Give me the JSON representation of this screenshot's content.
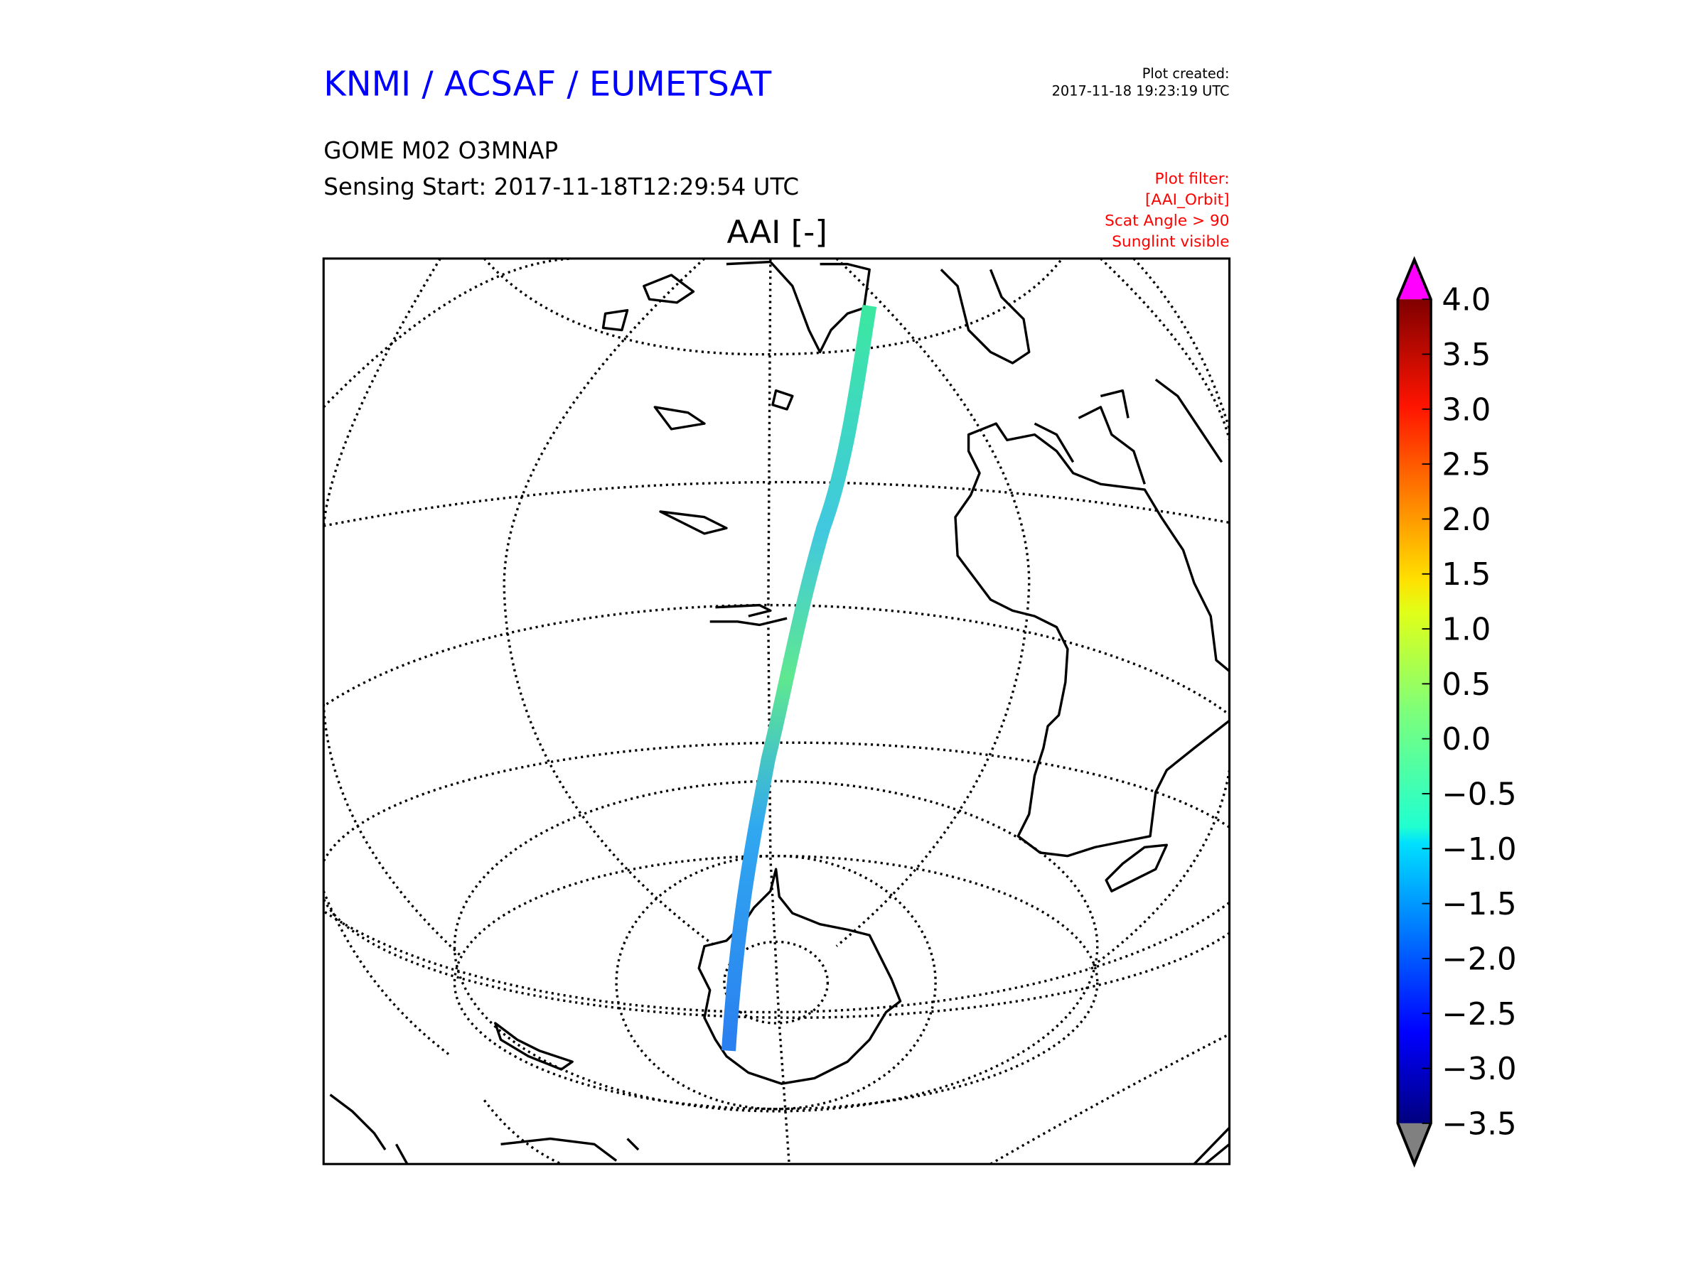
{
  "header": {
    "org_title": "KNMI / ACSAF / EUMETSAT",
    "product": "GOME M02 O3MNAP",
    "sensing_start": "Sensing Start: 2017-11-18T12:29:54 UTC",
    "plot_created_label": "Plot created:",
    "plot_created_value": "2017-11-18 19:23:19 UTC",
    "filter_lines": [
      "Plot filter:",
      "[AAI_Orbit]",
      "Scat Angle > 90",
      "Sunglint visible"
    ]
  },
  "map": {
    "title": "AAI [-]"
  },
  "colorbar": {
    "min": -3.5,
    "max": 4.0,
    "tick_labels": [
      "4.0",
      "3.5",
      "3.0",
      "2.5",
      "2.0",
      "1.5",
      "1.0",
      "0.5",
      "0.0",
      "−0.5",
      "−1.0",
      "−1.5",
      "−2.0",
      "−2.5",
      "−3.0",
      "−3.5"
    ],
    "over_color": "#ff00ff",
    "under_color": "#808080"
  },
  "colors": {
    "title_blue": "#0000ff",
    "filter_red": "#ff0000"
  }
}
